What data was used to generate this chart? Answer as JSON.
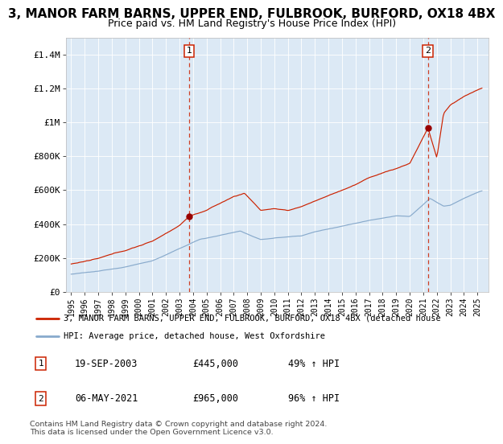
{
  "title": "3, MANOR FARM BARNS, UPPER END, FULBROOK, BURFORD, OX18 4BX",
  "subtitle": "Price paid vs. HM Land Registry's House Price Index (HPI)",
  "background_color": "#dce9f5",
  "red_line_color": "#cc2200",
  "blue_line_color": "#88aacc",
  "marker_color": "#990000",
  "vline_color": "#cc2200",
  "grid_color": "#c8d8e8",
  "ylim": [
    0,
    1500000
  ],
  "yticks": [
    0,
    200000,
    400000,
    600000,
    800000,
    1000000,
    1200000,
    1400000
  ],
  "ytick_labels": [
    "£0",
    "£200K",
    "£400K",
    "£600K",
    "£800K",
    "£1M",
    "£1.2M",
    "£1.4M"
  ],
  "sale1_year": 2003.72,
  "sale1_price": 445000,
  "sale2_year": 2021.35,
  "sale2_price": 965000,
  "legend1": "3, MANOR FARM BARNS, UPPER END, FULBROOK, BURFORD, OX18 4BX (detached house",
  "legend2": "HPI: Average price, detached house, West Oxfordshire",
  "table_row1": [
    "1",
    "19-SEP-2003",
    "£445,000",
    "49% ↑ HPI"
  ],
  "table_row2": [
    "2",
    "06-MAY-2021",
    "£965,000",
    "96% ↑ HPI"
  ],
  "footer": "Contains HM Land Registry data © Crown copyright and database right 2024.\nThis data is licensed under the Open Government Licence v3.0.",
  "title_fontsize": 11,
  "subtitle_fontsize": 9
}
